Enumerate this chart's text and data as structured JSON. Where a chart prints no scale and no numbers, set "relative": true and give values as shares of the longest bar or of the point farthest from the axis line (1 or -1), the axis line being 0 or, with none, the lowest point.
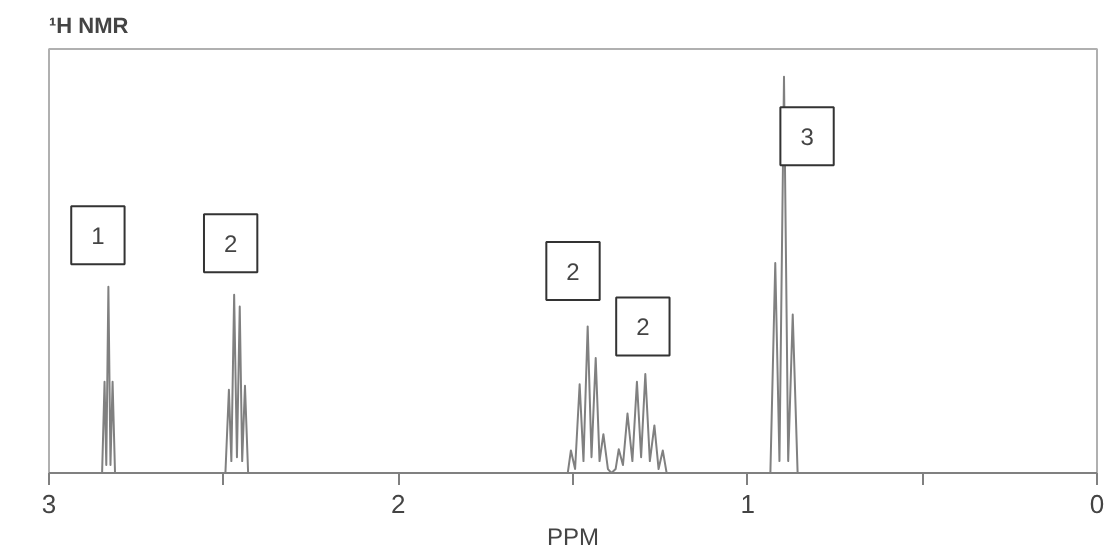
{
  "chart_data": {
    "type": "line",
    "title": "¹H NMR",
    "xlabel": "PPM",
    "relative": true,
    "xlim": [
      3,
      0
    ],
    "xticks": [
      3,
      {
        "value": 2.5,
        "label": null
      },
      2,
      {
        "value": 1.5,
        "label": null
      },
      1,
      {
        "value": 0.5,
        "label": null
      },
      0
    ],
    "grid": false,
    "marker": "none",
    "line_style": "solid",
    "series": [
      {
        "color": "#808080",
        "x": [
          3.0,
          2.848,
          2.841,
          2.836,
          2.83,
          2.824,
          2.818,
          2.811,
          2.495,
          2.485,
          2.478,
          2.47,
          2.462,
          2.454,
          2.447,
          2.439,
          2.43,
          1.515,
          1.506,
          1.494,
          1.481,
          1.47,
          1.458,
          1.447,
          1.435,
          1.424,
          1.413,
          1.4,
          1.39,
          1.378,
          1.369,
          1.357,
          1.344,
          1.33,
          1.317,
          1.305,
          1.293,
          1.28,
          1.267,
          1.255,
          1.243,
          1.232,
          0.935,
          0.921,
          0.909,
          0.896,
          0.884,
          0.871,
          0.857,
          0.0
        ],
        "values": [
          0,
          0,
          0.23,
          0.02,
          0.47,
          0.02,
          0.23,
          0,
          0,
          0.21,
          0.03,
          0.45,
          0.04,
          0.42,
          0.03,
          0.22,
          0,
          0,
          0.057,
          0.01,
          0.224,
          0.03,
          0.37,
          0.04,
          0.29,
          0.03,
          0.098,
          0.01,
          0,
          0.01,
          0.06,
          0.02,
          0.15,
          0.03,
          0.23,
          0.04,
          0.25,
          0.03,
          0.12,
          0.01,
          0.057,
          0,
          0,
          0.53,
          0.03,
          1,
          0.03,
          0.4,
          0,
          0
        ]
      }
    ],
    "annotations": [
      {
        "text": "1",
        "x": 2.86,
        "y": 0.6
      },
      {
        "text": "2",
        "x": 2.48,
        "y": 0.58
      },
      {
        "text": "2",
        "x": 1.5,
        "y": 0.51
      },
      {
        "text": "2",
        "x": 1.3,
        "y": 0.37
      },
      {
        "text": "3",
        "x": 0.83,
        "y": 0.85
      }
    ]
  }
}
